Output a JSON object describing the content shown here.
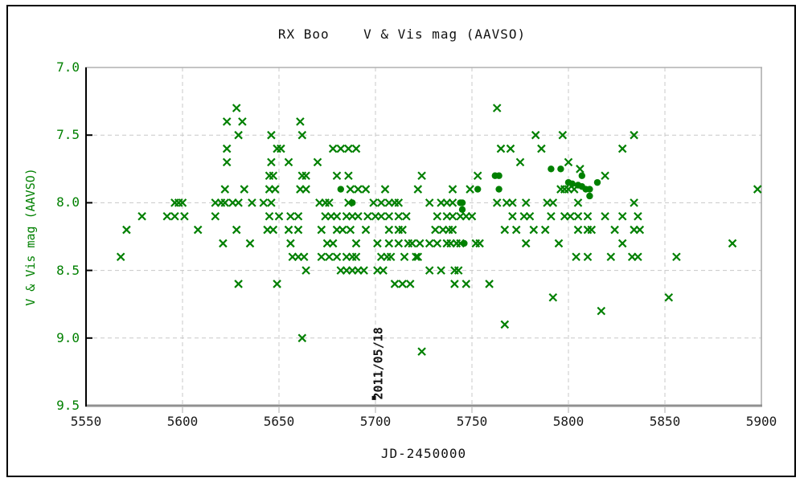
{
  "chart_data": {
    "type": "scatter",
    "title": "RX Boo    V & Vis mag (AAVSO)",
    "xlabel": "JD-2450000",
    "ylabel": "V & Vis mag (AAVSO)",
    "xlim": [
      5550,
      5900
    ],
    "ylim": [
      7.0,
      9.5
    ],
    "y_inverted": true,
    "grid": true,
    "x_ticks": [
      "5550",
      "5600",
      "5650",
      "5700",
      "5750",
      "5800",
      "5850",
      "5900"
    ],
    "y_ticks": [
      "7.0",
      "7.5",
      "8.0",
      "8.5",
      "9.0",
      "9.5"
    ],
    "annotation": {
      "text": "2011/05/18",
      "x": 5700,
      "marker": "black-square",
      "marker_x": 5699,
      "marker_y": 9.44,
      "rotation": "vertical",
      "color": "#111111"
    },
    "series": [
      {
        "name": "Vis",
        "marker": "x",
        "color": "#008000",
        "points": [
          [
            5568,
            8.4
          ],
          [
            5571,
            8.2
          ],
          [
            5579,
            8.1
          ],
          [
            5592,
            8.1
          ],
          [
            5596,
            8.1
          ],
          [
            5596,
            8.0
          ],
          [
            5598,
            8.0
          ],
          [
            5600,
            8.0
          ],
          [
            5601,
            8.1
          ],
          [
            5608,
            8.2
          ],
          [
            5617,
            8.0
          ],
          [
            5617,
            8.1
          ],
          [
            5620,
            8.0
          ],
          [
            5621,
            8.3
          ],
          [
            5622,
            8.0
          ],
          [
            5622,
            7.9
          ],
          [
            5623,
            7.4
          ],
          [
            5623,
            7.6
          ],
          [
            5623,
            7.7
          ],
          [
            5626,
            8.0
          ],
          [
            5628,
            7.3
          ],
          [
            5628,
            8.2
          ],
          [
            5629,
            7.5
          ],
          [
            5629,
            8.0
          ],
          [
            5629,
            8.6
          ],
          [
            5631,
            7.4
          ],
          [
            5632,
            7.9
          ],
          [
            5635,
            8.3
          ],
          [
            5636,
            8.0
          ],
          [
            5642,
            8.0
          ],
          [
            5644,
            8.2
          ],
          [
            5645,
            7.8
          ],
          [
            5645,
            7.9
          ],
          [
            5645,
            8.1
          ],
          [
            5646,
            7.5
          ],
          [
            5646,
            7.7
          ],
          [
            5646,
            8.0
          ],
          [
            5647,
            7.8
          ],
          [
            5647,
            8.2
          ],
          [
            5648,
            7.9
          ],
          [
            5649,
            7.6
          ],
          [
            5649,
            8.6
          ],
          [
            5650,
            8.1
          ],
          [
            5651,
            7.6
          ],
          [
            5655,
            7.7
          ],
          [
            5655,
            8.2
          ],
          [
            5656,
            8.1
          ],
          [
            5656,
            8.3
          ],
          [
            5657,
            8.4
          ],
          [
            5660,
            8.4
          ],
          [
            5660,
            8.1
          ],
          [
            5660,
            8.2
          ],
          [
            5661,
            7.4
          ],
          [
            5661,
            7.9
          ],
          [
            5662,
            7.5
          ],
          [
            5662,
            7.8
          ],
          [
            5662,
            9.0
          ],
          [
            5663,
            8.4
          ],
          [
            5664,
            7.8
          ],
          [
            5664,
            7.9
          ],
          [
            5664,
            8.5
          ],
          [
            5670,
            7.7
          ],
          [
            5671,
            8.0
          ],
          [
            5672,
            8.2
          ],
          [
            5672,
            8.4
          ],
          [
            5674,
            8.0
          ],
          [
            5674,
            8.1
          ],
          [
            5675,
            8.3
          ],
          [
            5676,
            8.0
          ],
          [
            5676,
            8.4
          ],
          [
            5677,
            8.1
          ],
          [
            5678,
            7.6
          ],
          [
            5678,
            8.3
          ],
          [
            5680,
            7.8
          ],
          [
            5680,
            8.1
          ],
          [
            5680,
            8.2
          ],
          [
            5680,
            8.4
          ],
          [
            5682,
            7.6
          ],
          [
            5682,
            8.5
          ],
          [
            5683,
            8.2
          ],
          [
            5685,
            8.1
          ],
          [
            5685,
            8.4
          ],
          [
            5685,
            8.5
          ],
          [
            5686,
            7.6
          ],
          [
            5686,
            7.8
          ],
          [
            5686,
            8.0
          ],
          [
            5687,
            7.9
          ],
          [
            5687,
            8.2
          ],
          [
            5688,
            8.1
          ],
          [
            5688,
            8.4
          ],
          [
            5688,
            8.5
          ],
          [
            5690,
            7.6
          ],
          [
            5690,
            8.3
          ],
          [
            5690,
            8.4
          ],
          [
            5691,
            7.9
          ],
          [
            5691,
            8.1
          ],
          [
            5691,
            8.5
          ],
          [
            5694,
            8.5
          ],
          [
            5695,
            7.9
          ],
          [
            5695,
            8.2
          ],
          [
            5696,
            8.1
          ],
          [
            5699,
            8.0
          ],
          [
            5700,
            8.1
          ],
          [
            5701,
            8.3
          ],
          [
            5701,
            8.5
          ],
          [
            5703,
            8.0
          ],
          [
            5703,
            8.1
          ],
          [
            5703,
            8.4
          ],
          [
            5704,
            8.5
          ],
          [
            5705,
            7.9
          ],
          [
            5706,
            8.4
          ],
          [
            5707,
            8.0
          ],
          [
            5707,
            8.1
          ],
          [
            5707,
            8.2
          ],
          [
            5707,
            8.3
          ],
          [
            5708,
            8.4
          ],
          [
            5710,
            8.0
          ],
          [
            5710,
            8.6
          ],
          [
            5712,
            8.0
          ],
          [
            5712,
            8.1
          ],
          [
            5712,
            8.2
          ],
          [
            5712,
            8.3
          ],
          [
            5714,
            8.2
          ],
          [
            5714,
            8.6
          ],
          [
            5715,
            8.4
          ],
          [
            5716,
            8.1
          ],
          [
            5717,
            8.3
          ],
          [
            5718,
            8.6
          ],
          [
            5719,
            8.3
          ],
          [
            5721,
            8.4
          ],
          [
            5722,
            7.9
          ],
          [
            5722,
            8.4
          ],
          [
            5723,
            8.3
          ],
          [
            5724,
            7.8
          ],
          [
            5724,
            9.1
          ],
          [
            5728,
            8.0
          ],
          [
            5728,
            8.3
          ],
          [
            5728,
            8.5
          ],
          [
            5731,
            8.2
          ],
          [
            5732,
            8.1
          ],
          [
            5732,
            8.3
          ],
          [
            5734,
            8.0
          ],
          [
            5734,
            8.5
          ],
          [
            5735,
            8.2
          ],
          [
            5737,
            8.0
          ],
          [
            5737,
            8.1
          ],
          [
            5737,
            8.3
          ],
          [
            5738,
            8.2
          ],
          [
            5739,
            8.3
          ],
          [
            5740,
            7.9
          ],
          [
            5740,
            8.0
          ],
          [
            5740,
            8.1
          ],
          [
            5740,
            8.2
          ],
          [
            5741,
            8.5
          ],
          [
            5741,
            8.6
          ],
          [
            5742,
            8.3
          ],
          [
            5743,
            8.5
          ],
          [
            5744,
            8.1
          ],
          [
            5744,
            8.3
          ],
          [
            5747,
            8.1
          ],
          [
            5747,
            8.6
          ],
          [
            5749,
            7.9
          ],
          [
            5750,
            8.1
          ],
          [
            5752,
            8.3
          ],
          [
            5753,
            7.8
          ],
          [
            5754,
            8.3
          ],
          [
            5759,
            8.6
          ],
          [
            5763,
            7.3
          ],
          [
            5763,
            8.0
          ],
          [
            5765,
            7.6
          ],
          [
            5767,
            8.2
          ],
          [
            5767,
            8.9
          ],
          [
            5768,
            8.0
          ],
          [
            5770,
            7.6
          ],
          [
            5771,
            8.0
          ],
          [
            5771,
            8.1
          ],
          [
            5773,
            8.2
          ],
          [
            5775,
            7.7
          ],
          [
            5777,
            8.1
          ],
          [
            5778,
            8.0
          ],
          [
            5778,
            8.3
          ],
          [
            5780,
            8.1
          ],
          [
            5782,
            8.2
          ],
          [
            5783,
            7.5
          ],
          [
            5786,
            7.6
          ],
          [
            5788,
            8.2
          ],
          [
            5789,
            8.0
          ],
          [
            5791,
            8.1
          ],
          [
            5792,
            8.0
          ],
          [
            5792,
            8.7
          ],
          [
            5795,
            8.3
          ],
          [
            5796,
            7.9
          ],
          [
            5797,
            7.5
          ],
          [
            5798,
            7.9
          ],
          [
            5798,
            8.1
          ],
          [
            5800,
            7.7
          ],
          [
            5800,
            7.9
          ],
          [
            5801,
            8.1
          ],
          [
            5803,
            7.9
          ],
          [
            5804,
            8.4
          ],
          [
            5805,
            8.0
          ],
          [
            5805,
            8.1
          ],
          [
            5805,
            8.2
          ],
          [
            5806,
            7.75
          ],
          [
            5810,
            8.1
          ],
          [
            5810,
            8.2
          ],
          [
            5810,
            8.4
          ],
          [
            5812,
            8.2
          ],
          [
            5817,
            8.8
          ],
          [
            5819,
            7.8
          ],
          [
            5819,
            8.1
          ],
          [
            5822,
            8.4
          ],
          [
            5824,
            8.2
          ],
          [
            5828,
            7.6
          ],
          [
            5828,
            8.1
          ],
          [
            5828,
            8.3
          ],
          [
            5833,
            8.4
          ],
          [
            5834,
            7.5
          ],
          [
            5834,
            8.0
          ],
          [
            5834,
            8.2
          ],
          [
            5836,
            8.1
          ],
          [
            5836,
            8.4
          ],
          [
            5837,
            8.2
          ],
          [
            5852,
            8.7
          ],
          [
            5856,
            8.4
          ],
          [
            5885,
            8.3
          ],
          [
            5898,
            7.9
          ]
        ]
      },
      {
        "name": "V",
        "marker": "filled-circle",
        "color": "#008000",
        "points": [
          [
            5682,
            7.9
          ],
          [
            5688,
            8.0
          ],
          [
            5744,
            8.0
          ],
          [
            5745,
            8.0
          ],
          [
            5745,
            8.05
          ],
          [
            5746,
            8.3
          ],
          [
            5753,
            7.9
          ],
          [
            5762,
            7.8
          ],
          [
            5764,
            7.8
          ],
          [
            5764,
            7.9
          ],
          [
            5791,
            7.75
          ],
          [
            5796,
            7.75
          ],
          [
            5800,
            7.85
          ],
          [
            5802,
            7.86
          ],
          [
            5805,
            7.87
          ],
          [
            5807,
            7.8
          ],
          [
            5807,
            7.88
          ],
          [
            5809,
            7.9
          ],
          [
            5811,
            7.9
          ],
          [
            5811,
            7.95
          ],
          [
            5815,
            7.85
          ]
        ]
      }
    ],
    "colors": {
      "marker_green": "#008000",
      "grid_gray": "#c8c8c8",
      "axis_gray": "#909090",
      "axis_black": "#000000",
      "text_black": "#111111"
    }
  }
}
